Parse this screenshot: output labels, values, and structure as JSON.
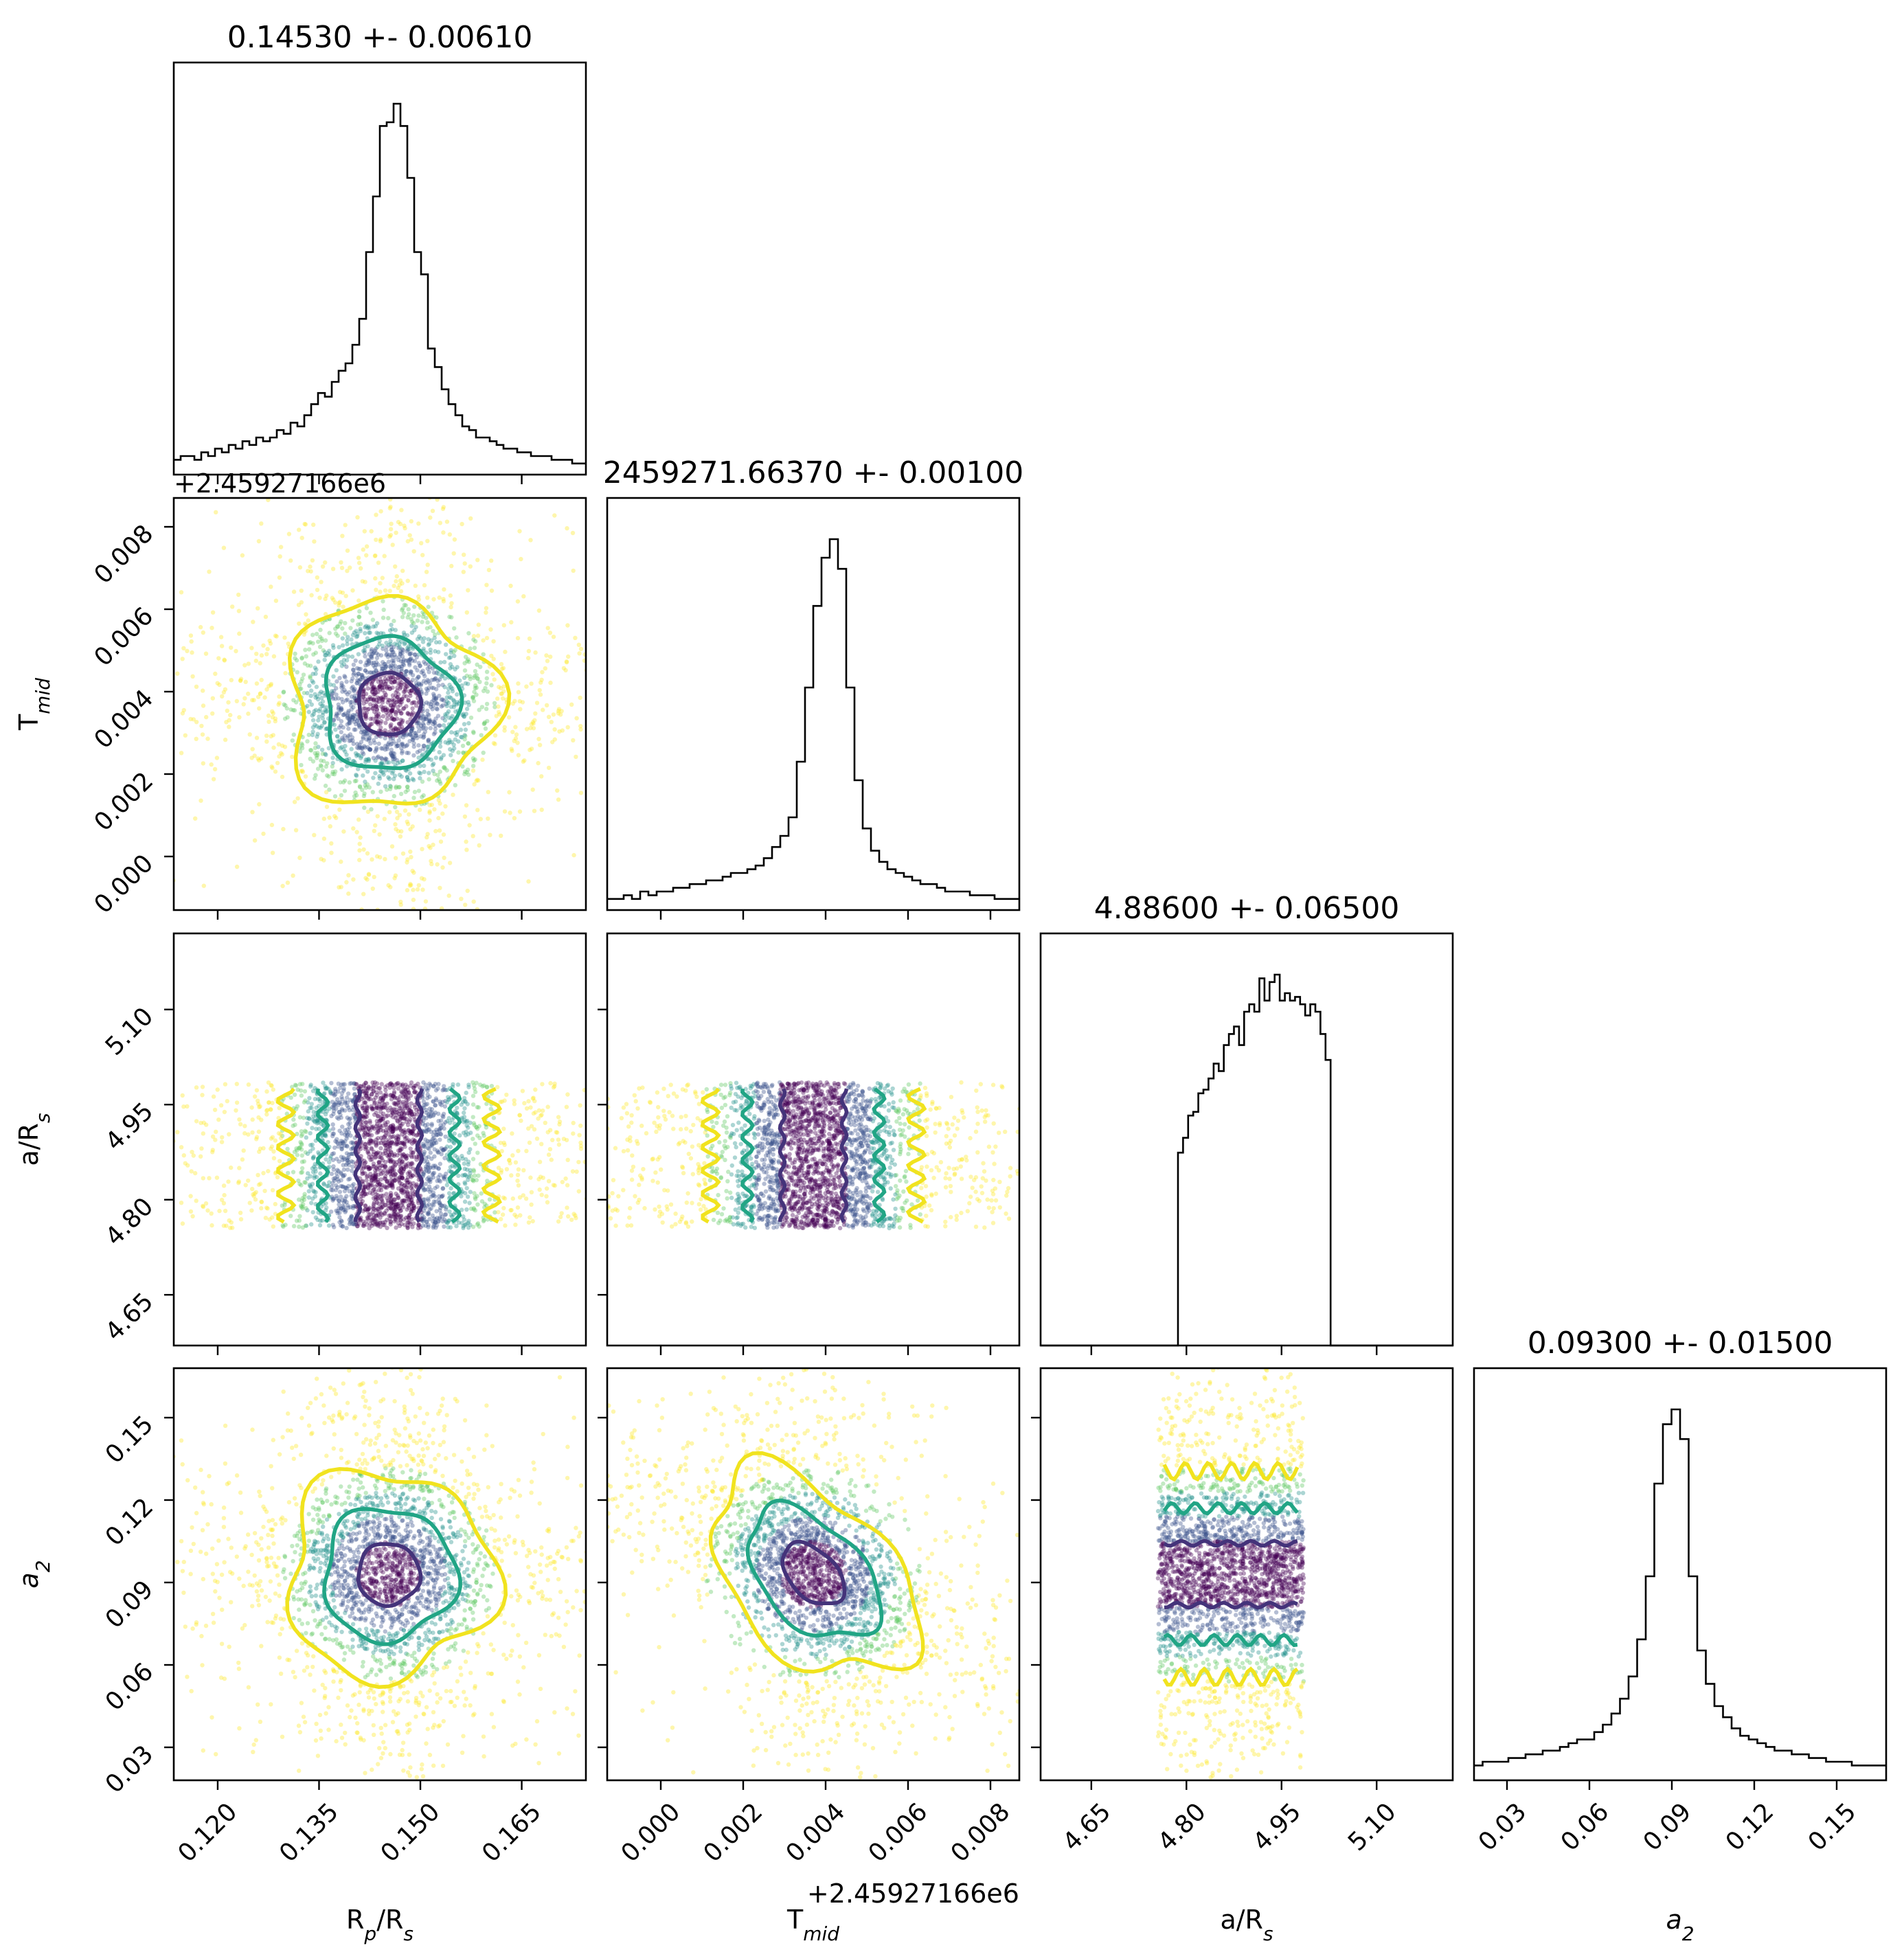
{
  "chart_data": {
    "type": "corner",
    "parameters": [
      {
        "name": "R_p/R_s",
        "label_main": "R",
        "label_sub": "p",
        "label_tail": "/R",
        "label_sub2": "s",
        "title": "0.14530 +- 0.00610",
        "mean": 0.1453,
        "sigma": 0.0061,
        "range": [
          0.1135,
          0.1745
        ],
        "ticks": [
          0.12,
          0.135,
          0.15,
          0.165
        ],
        "tick_labels": [
          "0.120",
          "0.135",
          "0.150",
          "0.165"
        ],
        "offset": ""
      },
      {
        "name": "T_mid",
        "label_main": "T",
        "label_sub": "mid",
        "label_tail": "",
        "label_sub2": "",
        "title": "2459271.66370 +- 0.00100",
        "mean": 0.0037,
        "sigma": 0.001,
        "range": [
          -0.0013,
          0.0087
        ],
        "ticks": [
          0.0,
          0.002,
          0.004,
          0.006,
          0.008
        ],
        "tick_labels": [
          "0.000",
          "0.002",
          "0.004",
          "0.006",
          "0.008"
        ],
        "offset": "+2.45927166e6"
      },
      {
        "name": "a/R_s",
        "label_main": "a/R",
        "label_sub": "s",
        "label_tail": "",
        "label_sub2": "",
        "title": "4.88600 +- 0.06500",
        "mean": 4.886,
        "sigma": 0.065,
        "range": [
          4.57,
          5.22
        ],
        "ticks": [
          4.65,
          4.8,
          4.95,
          5.1
        ],
        "tick_labels": [
          "4.65",
          "4.80",
          "4.95",
          "5.10"
        ],
        "offset": ""
      },
      {
        "name": "a_2",
        "label_main": "a",
        "label_sub": "2",
        "label_tail": "",
        "label_sub2": "",
        "title": "0.09300 +- 0.01500",
        "mean": 0.093,
        "sigma": 0.015,
        "range": [
          0.018,
          0.168
        ],
        "ticks": [
          0.03,
          0.06,
          0.09,
          0.12,
          0.15
        ],
        "tick_labels": [
          "0.03",
          "0.06",
          "0.09",
          "0.12",
          "0.15"
        ],
        "offset": ""
      }
    ],
    "hist_shapes": [
      [
        0.04,
        0.05,
        0.05,
        0.04,
        0.06,
        0.05,
        0.07,
        0.06,
        0.08,
        0.07,
        0.09,
        0.08,
        0.1,
        0.09,
        0.1,
        0.12,
        0.11,
        0.14,
        0.13,
        0.16,
        0.19,
        0.22,
        0.21,
        0.25,
        0.28,
        0.3,
        0.35,
        0.42,
        0.6,
        0.75,
        0.94,
        0.95,
        1.0,
        0.94,
        0.8,
        0.6,
        0.54,
        0.34,
        0.29,
        0.23,
        0.19,
        0.16,
        0.13,
        0.12,
        0.1,
        0.1,
        0.09,
        0.08,
        0.07,
        0.07,
        0.06,
        0.06,
        0.05,
        0.05,
        0.05,
        0.04,
        0.04,
        0.04,
        0.03,
        0.03
      ],
      [
        0.03,
        0.03,
        0.04,
        0.03,
        0.05,
        0.04,
        0.05,
        0.05,
        0.06,
        0.06,
        0.07,
        0.07,
        0.08,
        0.08,
        0.09,
        0.1,
        0.1,
        0.11,
        0.12,
        0.14,
        0.17,
        0.2,
        0.25,
        0.4,
        0.6,
        0.82,
        0.95,
        1.0,
        0.92,
        0.6,
        0.35,
        0.22,
        0.16,
        0.13,
        0.11,
        0.1,
        0.09,
        0.08,
        0.07,
        0.07,
        0.06,
        0.05,
        0.05,
        0.05,
        0.04,
        0.04,
        0.04,
        0.03,
        0.03,
        0.03
      ],
      [
        0.0,
        0.0,
        0.0,
        0.0,
        0.0,
        0.0,
        0.0,
        0.0,
        0.0,
        0.0,
        0.0,
        0.0,
        0.0,
        0.0,
        0.0,
        0.0,
        0.0,
        0.0,
        0.0,
        0.0,
        0.0,
        0.0,
        0.0,
        0.0,
        0.0,
        0.0,
        0.0,
        0.52,
        0.56,
        0.62,
        0.63,
        0.68,
        0.69,
        0.72,
        0.76,
        0.74,
        0.81,
        0.84,
        0.86,
        0.81,
        0.9,
        0.92,
        0.9,
        0.99,
        0.93,
        0.98,
        1.0,
        0.93,
        0.95,
        0.93,
        0.94,
        0.92,
        0.89,
        0.92,
        0.9,
        0.84,
        0.77,
        0.0,
        0.0,
        0.0,
        0.0,
        0.0,
        0.0,
        0.0,
        0.0,
        0.0,
        0.0,
        0.0,
        0.0,
        0.0,
        0.0,
        0.0,
        0.0,
        0.0,
        0.0,
        0.0,
        0.0,
        0.0,
        0.0,
        0.0,
        0.0
      ],
      [
        0.04,
        0.05,
        0.05,
        0.05,
        0.06,
        0.06,
        0.07,
        0.07,
        0.08,
        0.08,
        0.09,
        0.1,
        0.11,
        0.11,
        0.13,
        0.15,
        0.18,
        0.22,
        0.28,
        0.38,
        0.55,
        0.8,
        0.96,
        1.0,
        0.92,
        0.55,
        0.35,
        0.26,
        0.2,
        0.17,
        0.14,
        0.12,
        0.11,
        0.1,
        0.09,
        0.08,
        0.08,
        0.07,
        0.07,
        0.06,
        0.06,
        0.05,
        0.05,
        0.05,
        0.04,
        0.04,
        0.04,
        0.04
      ]
    ],
    "contour_levels": [
      "0.5 sigma",
      "1.5 sigma",
      "2.5 sigma"
    ],
    "colors": {
      "inner": "#44337a",
      "middle": "#21a585",
      "outer": "#f1e31f",
      "points": [
        "#440154",
        "#3b528b",
        "#21918c",
        "#5ec962",
        "#fde725"
      ],
      "hist": "#000000"
    }
  }
}
